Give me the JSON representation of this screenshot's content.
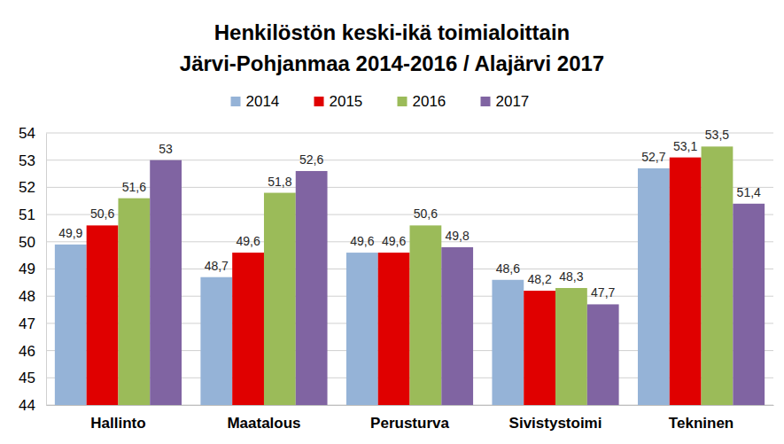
{
  "chart_data": {
    "type": "bar",
    "title": "Henkilöstön keski-ikä toimialoittain",
    "subtitle": "Järvi-Pohjanmaa 2014-2016 / Alajärvi 2017",
    "categories": [
      "Hallinto",
      "Maatalous",
      "Perusturva",
      "Sivistystoimi",
      "Tekninen"
    ],
    "series": [
      {
        "name": "2014",
        "color": "#95b3d7",
        "values": [
          49.9,
          48.7,
          49.6,
          48.6,
          52.7
        ],
        "value_labels": [
          "49,9",
          "48,7",
          "49,6",
          "48,6",
          "52,7"
        ]
      },
      {
        "name": "2015",
        "color": "#e00000",
        "values": [
          50.6,
          49.6,
          49.6,
          48.2,
          53.1
        ],
        "value_labels": [
          "50,6",
          "49,6",
          "49,6",
          "48,2",
          "53,1"
        ]
      },
      {
        "name": "2016",
        "color": "#9bbb59",
        "values": [
          51.6,
          51.8,
          50.6,
          48.3,
          53.5
        ],
        "value_labels": [
          "51,6",
          "51,8",
          "50,6",
          "48,3",
          "53,5"
        ]
      },
      {
        "name": "2017",
        "color": "#8064a2",
        "values": [
          53,
          52.6,
          49.8,
          47.7,
          51.4
        ],
        "value_labels": [
          "53",
          "52,6",
          "49,8",
          "47,7",
          "51,4"
        ]
      }
    ],
    "ylim": [
      44,
      54
    ],
    "yticks": [
      44,
      45,
      46,
      47,
      48,
      49,
      50,
      51,
      52,
      53,
      54
    ],
    "grid": true,
    "legend": "top",
    "data_labels": true
  }
}
